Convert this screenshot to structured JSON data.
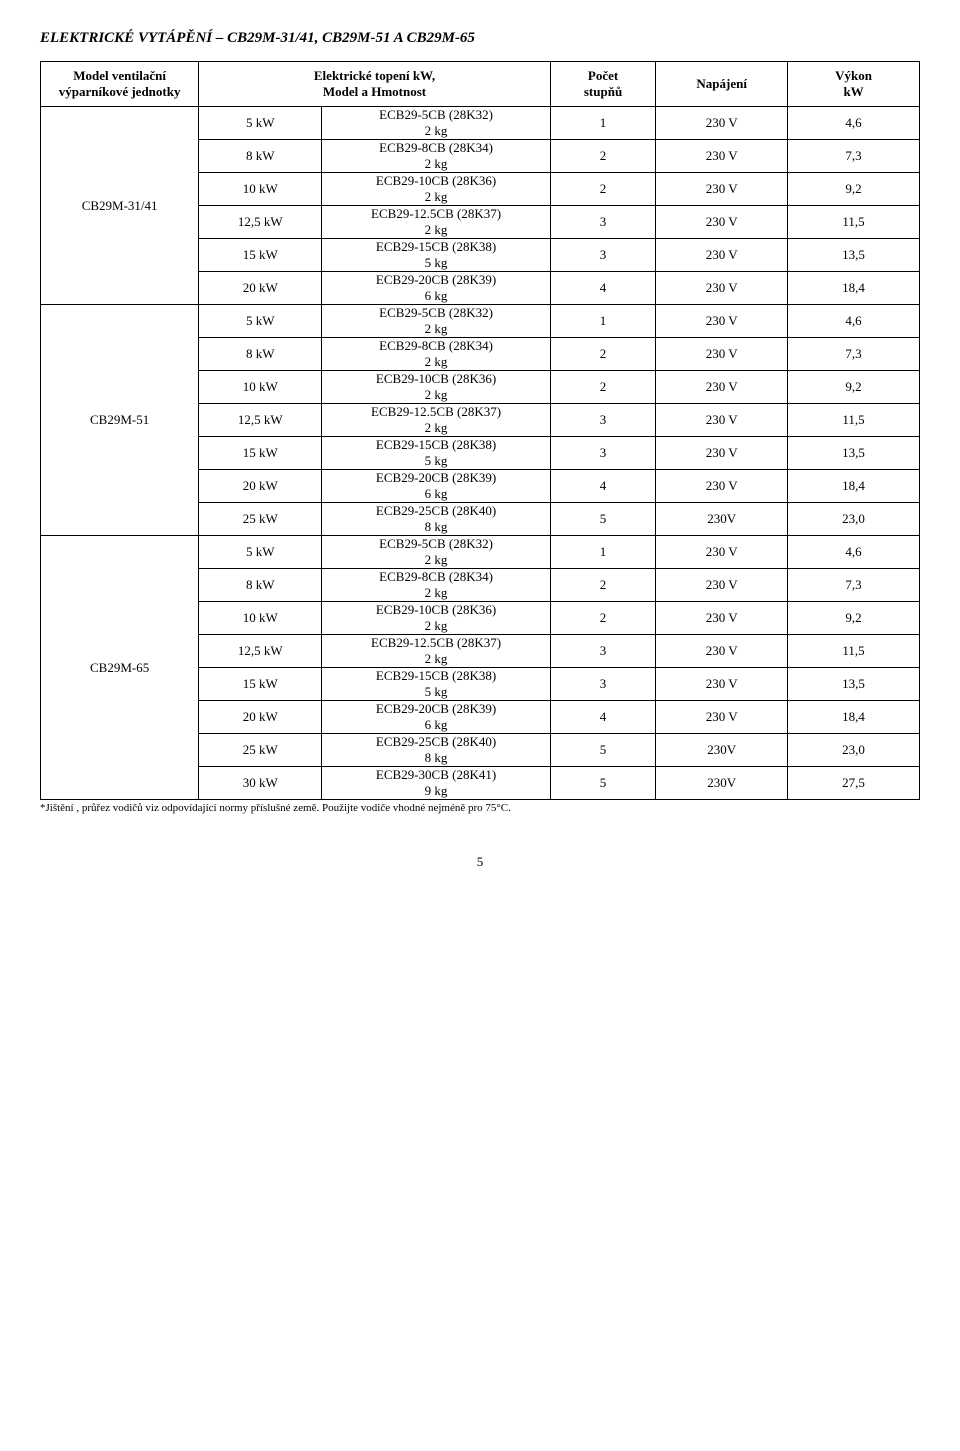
{
  "title": "ELEKTRICKÉ VYTÁPĚNÍ – CB29M-31/41, CB29M-51 A CB29M-65",
  "headers": {
    "unit": "Model ventilační\nvýparníkové jednotky",
    "heat": "Elektrické topení kW,\nModel a Hmotnost",
    "steps": "Počet\nstupňů",
    "supply": "Napájení",
    "power": "Výkon\nkW"
  },
  "groups": [
    {
      "unit": "CB29M-31/41",
      "rows": [
        {
          "kw": "5 kW",
          "model": "ECB29-5CB (28K32)",
          "wt": "2 kg",
          "steps": "1",
          "supply": "230 V",
          "power": "4,6"
        },
        {
          "kw": "8 kW",
          "model": "ECB29-8CB (28K34)",
          "wt": "2 kg",
          "steps": "2",
          "supply": "230 V",
          "power": "7,3"
        },
        {
          "kw": "10 kW",
          "model": "ECB29-10CB (28K36)",
          "wt": "2 kg",
          "steps": "2",
          "supply": "230 V",
          "power": "9,2"
        },
        {
          "kw": "12,5 kW",
          "model": "ECB29-12.5CB (28K37)",
          "wt": "2 kg",
          "steps": "3",
          "supply": "230 V",
          "power": "11,5"
        },
        {
          "kw": "15 kW",
          "model": "ECB29-15CB (28K38)",
          "wt": "5 kg",
          "steps": "3",
          "supply": "230 V",
          "power": "13,5"
        },
        {
          "kw": "20 kW",
          "model": "ECB29-20CB (28K39)",
          "wt": "6 kg",
          "steps": "4",
          "supply": "230 V",
          "power": "18,4"
        }
      ]
    },
    {
      "unit": "CB29M-51",
      "rows": [
        {
          "kw": "5 kW",
          "model": "ECB29-5CB (28K32)",
          "wt": "2 kg",
          "steps": "1",
          "supply": "230 V",
          "power": "4,6"
        },
        {
          "kw": "8 kW",
          "model": "ECB29-8CB (28K34)",
          "wt": "2 kg",
          "steps": "2",
          "supply": "230 V",
          "power": "7,3"
        },
        {
          "kw": "10 kW",
          "model": "ECB29-10CB (28K36)",
          "wt": "2 kg",
          "steps": "2",
          "supply": "230 V",
          "power": "9,2"
        },
        {
          "kw": "12,5 kW",
          "model": "ECB29-12.5CB (28K37)",
          "wt": "2 kg",
          "steps": "3",
          "supply": "230 V",
          "power": "11,5"
        },
        {
          "kw": "15 kW",
          "model": "ECB29-15CB (28K38)",
          "wt": "5 kg",
          "steps": "3",
          "supply": "230 V",
          "power": "13,5"
        },
        {
          "kw": "20 kW",
          "model": "ECB29-20CB (28K39)",
          "wt": "6 kg",
          "steps": "4",
          "supply": "230 V",
          "power": "18,4"
        },
        {
          "kw": "25 kW",
          "model": "ECB29-25CB (28K40)",
          "wt": "8 kg",
          "steps": "5",
          "supply": "230V",
          "power": "23,0"
        }
      ]
    },
    {
      "unit": "CB29M-65",
      "rows": [
        {
          "kw": "5 kW",
          "model": "ECB29-5CB (28K32)",
          "wt": "2 kg",
          "steps": "1",
          "supply": "230 V",
          "power": "4,6"
        },
        {
          "kw": "8 kW",
          "model": "ECB29-8CB (28K34)",
          "wt": "2 kg",
          "steps": "2",
          "supply": "230 V",
          "power": "7,3"
        },
        {
          "kw": "10 kW",
          "model": "ECB29-10CB (28K36)",
          "wt": "2 kg",
          "steps": "2",
          "supply": "230 V",
          "power": "9,2"
        },
        {
          "kw": "12,5 kW",
          "model": "ECB29-12.5CB (28K37)",
          "wt": "2 kg",
          "steps": "3",
          "supply": "230 V",
          "power": "11,5"
        },
        {
          "kw": "15 kW",
          "model": "ECB29-15CB (28K38)",
          "wt": "5 kg",
          "steps": "3",
          "supply": "230 V",
          "power": "13,5"
        },
        {
          "kw": "20 kW",
          "model": "ECB29-20CB (28K39)",
          "wt": "6 kg",
          "steps": "4",
          "supply": "230 V",
          "power": "18,4"
        },
        {
          "kw": "25 kW",
          "model": "ECB29-25CB (28K40)",
          "wt": "8 kg",
          "steps": "5",
          "supply": "230V",
          "power": "23,0"
        },
        {
          "kw": "30 kW",
          "model": "ECB29-30CB (28K41)",
          "wt": "9 kg",
          "steps": "5",
          "supply": "230V",
          "power": "27,5"
        }
      ]
    }
  ],
  "footnote": "*Jištění , průřez vodičů viz odpovídající normy příslušné země. Použijte vodiče vhodné nejméně pro 75°C.",
  "pagenum": "5"
}
